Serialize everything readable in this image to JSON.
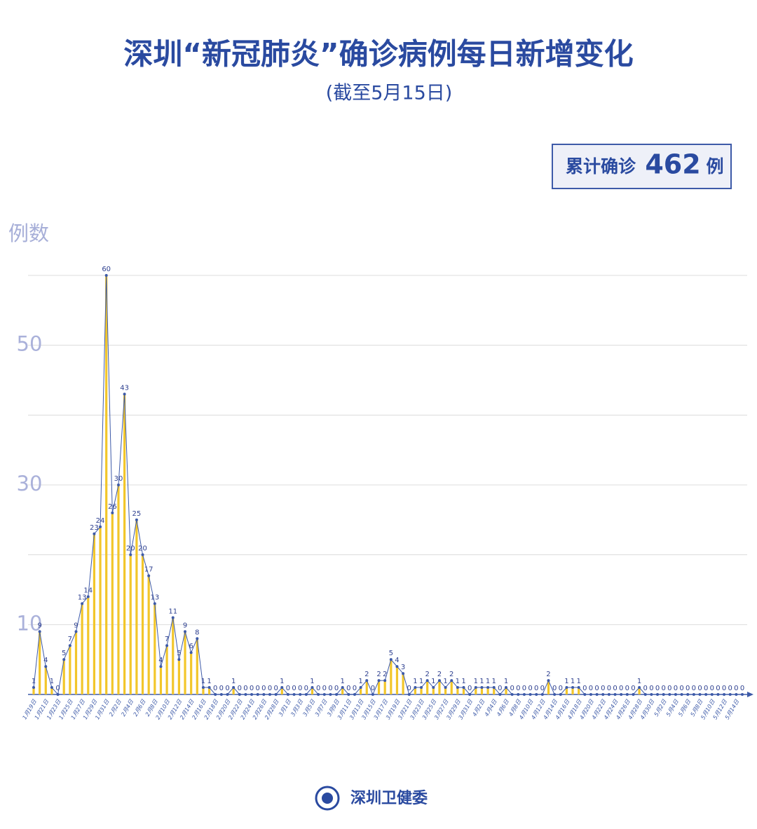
{
  "header": {
    "title": "深圳“新冠肺炎”确诊病例每日新增变化",
    "subtitle": "(截至5月15日)"
  },
  "summary": {
    "label": "累计确诊",
    "value": 462,
    "unit": "例"
  },
  "footer": {
    "source": "深圳卫健委"
  },
  "chart_data": {
    "type": "bar",
    "y_label": "例数",
    "bar_color": "#f2c62a",
    "line_color": "#3d5aa8",
    "categories": [
      "1月19日",
      null,
      "1月21日",
      null,
      "1月23日",
      null,
      "1月25日",
      null,
      "1月27日",
      null,
      "1月29日",
      null,
      "1月31日",
      null,
      "2月2日",
      null,
      "2月4日",
      null,
      "2月6日",
      null,
      "2月8日",
      null,
      "2月10日",
      null,
      "2月12日",
      null,
      "2月14日",
      null,
      "2月16日",
      null,
      "2月18日",
      null,
      "2月20日",
      null,
      "2月22日",
      null,
      "2月24日",
      null,
      "2月26日",
      null,
      "2月28日",
      null,
      "3月1日",
      null,
      "3月3日",
      null,
      "3月5日",
      null,
      "3月7日",
      null,
      "3月9日",
      null,
      "3月11日",
      null,
      "3月13日",
      null,
      "3月15日",
      null,
      "3月17日",
      null,
      "3月19日",
      null,
      "3月21日",
      null,
      "3月23日",
      null,
      "3月25日",
      null,
      "3月27日",
      null,
      "3月29日",
      null,
      "3月31日",
      null,
      "4月2日",
      null,
      "4月4日",
      null,
      "4月6日",
      null,
      "4月8日",
      null,
      "4月10日",
      null,
      "4月12日",
      null,
      "4月14日",
      null,
      "4月16日",
      null,
      "4月18日",
      null,
      "4月20日",
      null,
      "4月22日",
      null,
      "4月24日",
      null,
      "4月26日",
      null,
      "4月28日",
      null,
      "4月30日",
      null,
      "5月2日",
      null,
      "5月4日",
      null,
      "5月6日",
      null,
      "5月8日",
      null,
      "5月10日",
      null,
      "5月12日",
      null,
      "5月14日",
      null
    ],
    "values": [
      1,
      9,
      4,
      1,
      0,
      5,
      7,
      9,
      13,
      14,
      23,
      24,
      60,
      26,
      30,
      43,
      20,
      25,
      20,
      17,
      13,
      4,
      7,
      11,
      5,
      9,
      6,
      8,
      1,
      1,
      0,
      0,
      0,
      1,
      0,
      0,
      0,
      0,
      0,
      0,
      0,
      1,
      0,
      0,
      0,
      0,
      1,
      0,
      0,
      0,
      0,
      1,
      0,
      0,
      1,
      2,
      0,
      2,
      2,
      5,
      4,
      3,
      0,
      1,
      1,
      2,
      1,
      2,
      1,
      2,
      1,
      1,
      0,
      1,
      1,
      1,
      1,
      0,
      1,
      0,
      0,
      0,
      0,
      0,
      0,
      2,
      0,
      0,
      1,
      1,
      1,
      0,
      0,
      0,
      0,
      0,
      0,
      0,
      0,
      0,
      1,
      0,
      0,
      0,
      0,
      0,
      0,
      0,
      0,
      0,
      0,
      0,
      0,
      0,
      0,
      0,
      0,
      0
    ],
    "ylim": [
      0,
      60
    ],
    "yticks": [
      10,
      {
        "value": 20,
        "label": null
      },
      30,
      {
        "value": 40,
        "label": null
      },
      50,
      {
        "value": 60,
        "label": null
      }
    ],
    "grid": true
  }
}
